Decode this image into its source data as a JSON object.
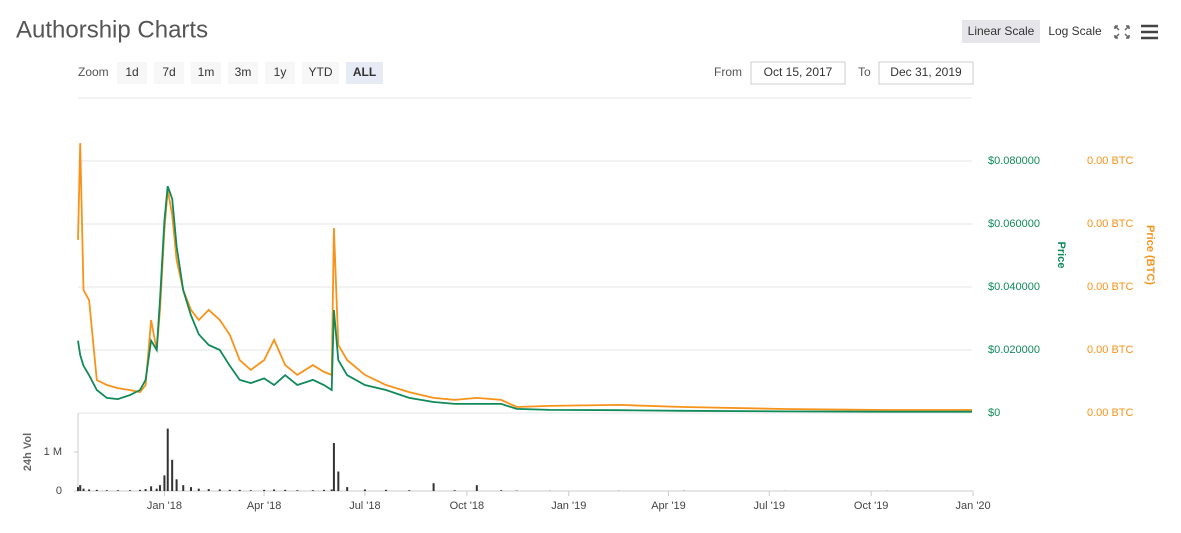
{
  "header": {
    "title": "Authorship Charts",
    "scale_buttons": [
      "Linear Scale",
      "Log Scale"
    ],
    "zoom_label": "Zoom",
    "zoom_buttons": [
      "1d",
      "7d",
      "1m",
      "3m",
      "1y",
      "YTD",
      "ALL"
    ],
    "from_label": "From",
    "from_date": "Oct 15, 2017",
    "to_label": "To",
    "to_date": "Dec 31, 2019"
  },
  "chart_data": [
    {
      "type": "line",
      "x": [
        "2017-10-15",
        "2017-10-17",
        "2017-10-20",
        "2017-10-25",
        "2017-11-01",
        "2017-11-10",
        "2017-11-20",
        "2017-12-01",
        "2017-12-10",
        "2017-12-15",
        "2017-12-20",
        "2017-12-25",
        "2017-12-28",
        "2018-01-01",
        "2018-01-04",
        "2018-01-08",
        "2018-01-12",
        "2018-01-18",
        "2018-01-25",
        "2018-02-01",
        "2018-02-10",
        "2018-02-20",
        "2018-03-01",
        "2018-03-10",
        "2018-03-20",
        "2018-04-01",
        "2018-04-10",
        "2018-04-20",
        "2018-05-01",
        "2018-05-15",
        "2018-05-25",
        "2018-06-01",
        "2018-06-03",
        "2018-06-07",
        "2018-06-15",
        "2018-07-01",
        "2018-07-20",
        "2018-08-10",
        "2018-09-01",
        "2018-09-20",
        "2018-10-10",
        "2018-11-01",
        "2018-11-15",
        "2018-12-15",
        "2019-02-15",
        "2019-04-15",
        "2019-07-15",
        "2019-10-15",
        "2019-12-31"
      ],
      "xlim": [
        "2017-10-15",
        "2019-12-31"
      ],
      "ylabel": "Price",
      "y2label": "Price (BTC)",
      "ylim": [
        0,
        0.1
      ],
      "yticks": [
        {
          "value": 0,
          "label": "$0"
        },
        {
          "value": 0.02,
          "label": "$0.020000"
        },
        {
          "value": 0.04,
          "label": "$0.040000"
        },
        {
          "value": 0.06,
          "label": "$0.060000"
        },
        {
          "value": 0.08,
          "label": "$0.080000"
        }
      ],
      "y2lim": [
        0,
        1.25e-05
      ],
      "y2ticks": [
        {
          "value": 0,
          "label": "0.00 BTC"
        },
        {
          "value": 2.5e-06,
          "label": "0.00 BTC"
        },
        {
          "value": 5e-06,
          "label": "0.00 BTC"
        },
        {
          "value": 7.5e-06,
          "label": "0.00 BTC"
        },
        {
          "value": 1e-05,
          "label": "0.00 BTC"
        }
      ],
      "grid": true,
      "series": [
        {
          "name": "Price",
          "color": "#118a5a",
          "axis": "y",
          "values": [
            0.023,
            0.0184,
            0.015,
            0.012,
            0.0073,
            0.0048,
            0.0044,
            0.0057,
            0.0073,
            0.0105,
            0.023,
            0.02,
            0.036,
            0.061,
            0.072,
            0.068,
            0.053,
            0.039,
            0.031,
            0.025,
            0.0216,
            0.02,
            0.015,
            0.0105,
            0.0095,
            0.011,
            0.0089,
            0.012,
            0.0089,
            0.0105,
            0.0089,
            0.0073,
            0.0327,
            0.0168,
            0.012,
            0.0089,
            0.0073,
            0.0048,
            0.0035,
            0.0029,
            0.0029,
            0.0029,
            0.0013,
            0.001,
            0.0009,
            0.0007,
            0.0005,
            0.0004,
            0.0004
          ]
        },
        {
          "name": "Price (BTC)",
          "color": "#f7931a",
          "axis": "y2",
          "values": [
            6.87e-06,
            1.071e-05,
            4.88e-06,
            4.48e-06,
            1.31e-06,
            1.11e-06,
            9.9e-07,
            9.1e-07,
            8.3e-07,
            1.11e-06,
            3.69e-06,
            2.5e-06,
            4.09e-06,
            7.26e-06,
            8.85e-06,
            7.86e-06,
            6.07e-06,
            4.88e-06,
            4.09e-06,
            3.69e-06,
            4.09e-06,
            3.69e-06,
            3.1e-06,
            2.1e-06,
            1.71e-06,
            2.1e-06,
            2.9e-06,
            1.9e-06,
            1.51e-06,
            1.9e-06,
            1.63e-06,
            1.51e-06,
            7.34e-06,
            2.7e-06,
            2.1e-06,
            1.51e-06,
            1.11e-06,
            8.3e-07,
            6e-07,
            5.2e-07,
            6e-07,
            5.2e-07,
            2.4e-07,
            2.8e-07,
            3.2e-07,
            2.4e-07,
            1.6e-07,
            1.2e-07,
            1.2e-07
          ]
        }
      ]
    },
    {
      "type": "bar",
      "x": [
        "2017-10-15",
        "2017-10-17",
        "2017-10-20",
        "2017-10-25",
        "2017-11-01",
        "2017-11-10",
        "2017-11-20",
        "2017-12-01",
        "2017-12-10",
        "2017-12-15",
        "2017-12-20",
        "2017-12-25",
        "2017-12-28",
        "2018-01-01",
        "2018-01-04",
        "2018-01-08",
        "2018-01-12",
        "2018-01-18",
        "2018-01-25",
        "2018-02-01",
        "2018-02-10",
        "2018-02-20",
        "2018-03-01",
        "2018-03-10",
        "2018-03-20",
        "2018-04-01",
        "2018-04-10",
        "2018-04-20",
        "2018-05-01",
        "2018-05-15",
        "2018-05-25",
        "2018-06-01",
        "2018-06-03",
        "2018-06-07",
        "2018-06-15",
        "2018-07-01",
        "2018-07-20",
        "2018-08-10",
        "2018-09-01",
        "2018-09-20",
        "2018-10-10",
        "2018-11-01",
        "2018-11-15",
        "2018-12-15",
        "2019-02-15",
        "2019-04-15",
        "2019-07-15",
        "2019-10-15",
        "2019-12-31"
      ],
      "xlim": [
        "2017-10-15",
        "2019-12-31"
      ],
      "xticks": [
        {
          "value": "2018-01-01",
          "label": "Jan '18"
        },
        {
          "value": "2018-04-01",
          "label": "Apr '18"
        },
        {
          "value": "2018-07-01",
          "label": "Jul '18"
        },
        {
          "value": "2018-10-01",
          "label": "Oct '18"
        },
        {
          "value": "2019-01-01",
          "label": "Jan '19"
        },
        {
          "value": "2019-04-01",
          "label": "Apr '19"
        },
        {
          "value": "2019-07-01",
          "label": "Jul '19"
        },
        {
          "value": "2019-10-01",
          "label": "Oct '19"
        },
        {
          "value": "2020-01-01",
          "label": "Jan '20"
        }
      ],
      "ylabel": "24h Vol",
      "ylim": [
        0,
        2000000
      ],
      "yticks": [
        0,
        {
          "value": 1000000,
          "label": "1 M"
        }
      ],
      "color": "#333333",
      "values": [
        100000,
        150000,
        60000,
        40000,
        30000,
        20000,
        20000,
        20000,
        30000,
        50000,
        120000,
        60000,
        150000,
        400000,
        1600000,
        800000,
        300000,
        150000,
        100000,
        60000,
        50000,
        40000,
        30000,
        30000,
        20000,
        30000,
        40000,
        30000,
        20000,
        20000,
        30000,
        40000,
        1230000,
        500000,
        100000,
        40000,
        30000,
        20000,
        200000,
        20000,
        150000,
        20000,
        10000,
        5000,
        5000,
        5000,
        3000,
        3000,
        3000
      ]
    }
  ]
}
